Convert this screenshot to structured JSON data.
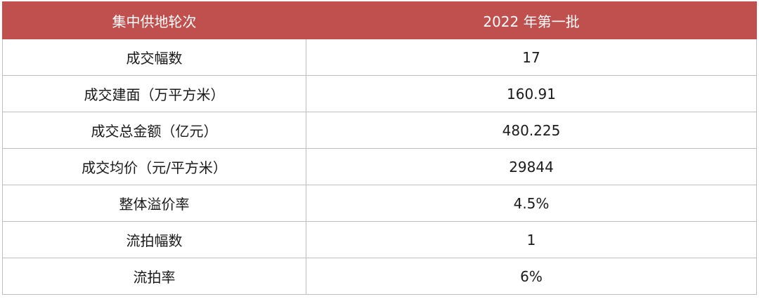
{
  "table": {
    "header": [
      "集中供地轮次",
      "2022 年第一批"
    ],
    "rows": [
      [
        "成交幅数",
        "17"
      ],
      [
        "成交建面（万平方米）",
        "160.91"
      ],
      [
        "成交总金额（亿元）",
        "480.225"
      ],
      [
        "成交均价（元/平方米）",
        "29844"
      ],
      [
        "整体溢价率",
        "4.5%"
      ],
      [
        "流拍幅数",
        "1"
      ],
      [
        "流拍率",
        "6%"
      ]
    ]
  }
}
